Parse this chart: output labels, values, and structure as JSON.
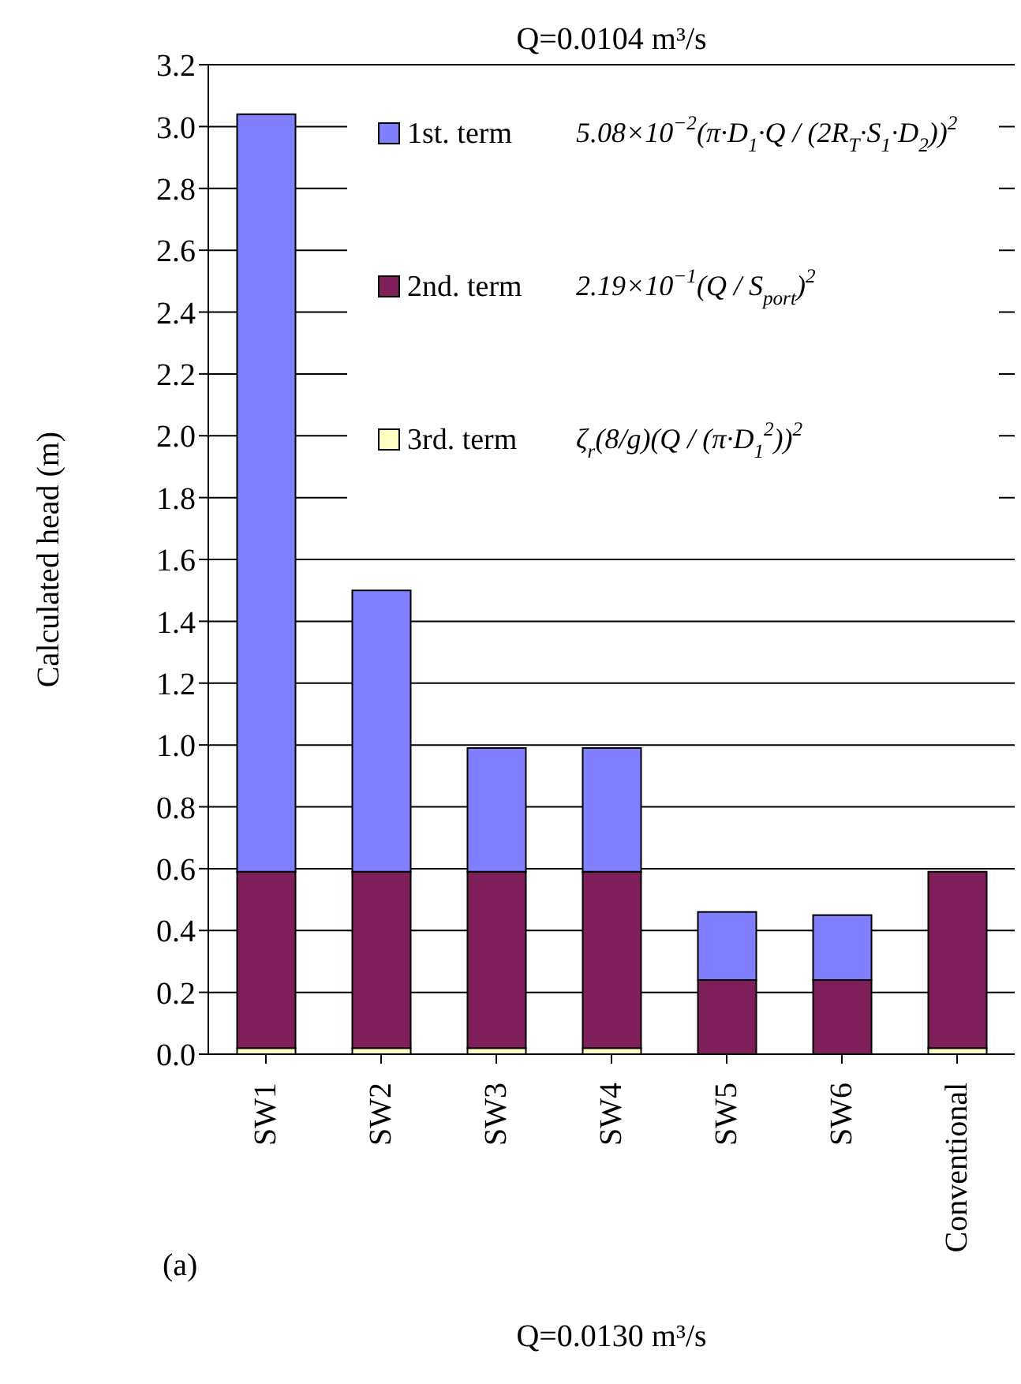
{
  "chart_data": {
    "type": "bar",
    "title": "Q=0.0104 m³/s",
    "ylabel": "Calculated head (m)",
    "categories": [
      "SW1",
      "SW2",
      "SW3",
      "SW4",
      "SW5",
      "SW6",
      "Conventional"
    ],
    "series": [
      {
        "name": "3rd. term",
        "color": "#ffffc0",
        "values": [
          0.02,
          0.02,
          0.02,
          0.02,
          0,
          0,
          0.02
        ]
      },
      {
        "name": "2nd. term",
        "color": "#7f1f5a",
        "values": [
          0.57,
          0.57,
          0.57,
          0.57,
          0.24,
          0.24,
          0.57
        ]
      },
      {
        "name": "1st. term",
        "color": "#8080ff",
        "values": [
          2.45,
          0.91,
          0.4,
          0.4,
          0.22,
          0.21,
          0
        ]
      }
    ],
    "stacked": true,
    "ylim": [
      0,
      3.2
    ],
    "yticks": [
      {
        "value": 0,
        "label": "0.0"
      },
      0.2,
      0.4,
      0.6,
      0.8,
      {
        "value": 1,
        "label": "1.0"
      },
      1.2,
      1.4,
      1.6,
      1.8,
      {
        "value": 2,
        "label": "2.0"
      },
      2.2,
      2.4,
      2.6,
      2.8,
      {
        "value": 3,
        "label": "3.0"
      },
      3.2
    ],
    "grid": "y",
    "legend": "top",
    "annotations": [
      "5.08×10$^{−2}$(π·D$_{1}$·Q / (2R$_{T}$·S$_{1}$·D$_{2}$))$^{2}$",
      "2.19×10$^{−1}$(Q / S$_{port}$)$^{2}$",
      "ζ$_{r}$(8/g)(Q / (π·D$_{1}$$^{2}$))$^{2}$",
      "(a)",
      "Q=0.0130 m³/s"
    ]
  }
}
